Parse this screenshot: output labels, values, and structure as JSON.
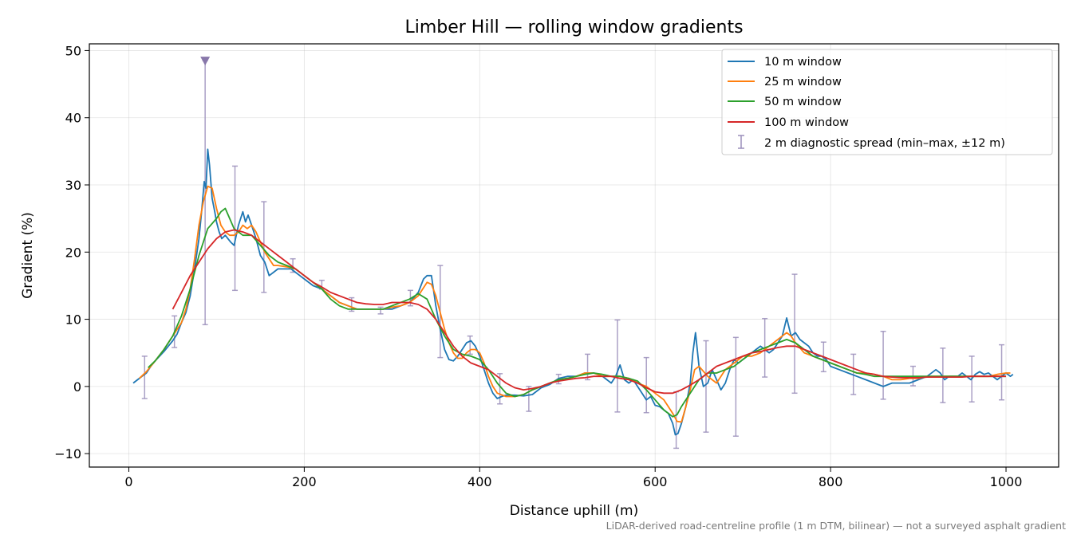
{
  "chart_data": {
    "type": "line",
    "title": "Limber Hill — rolling window gradients",
    "xlabel": "Distance uphill (m)",
    "ylabel": "Gradient (%)",
    "xlim": [
      -45,
      1060
    ],
    "ylim": [
      -12,
      51
    ],
    "xticks": [
      0,
      200,
      400,
      600,
      800,
      1000
    ],
    "xtick_labels": [
      "0",
      "200",
      "400",
      "600",
      "800",
      "1000"
    ],
    "yticks": [
      -10,
      0,
      10,
      20,
      30,
      40,
      50
    ],
    "ytick_labels": [
      "−10",
      "0",
      "10",
      "20",
      "30",
      "40",
      "50"
    ],
    "grid": true,
    "legend_position": "top-right",
    "footnote": "LiDAR-derived road-centreline profile (1 m DTM, bilinear) — not a surveyed asphalt gradient",
    "colors": {
      "10m": "#1f77b4",
      "25m": "#ff7f0e",
      "50m": "#2ca02c",
      "100m": "#d62728",
      "errorbar": "#9b8fbb"
    },
    "series": [
      {
        "name": "10 m window",
        "color": "#1f77b4",
        "x": [
          5,
          10,
          15,
          20,
          25,
          30,
          35,
          40,
          45,
          50,
          55,
          60,
          65,
          70,
          75,
          80,
          83,
          86,
          88,
          90,
          92,
          95,
          98,
          100,
          103,
          106,
          110,
          113,
          116,
          120,
          125,
          130,
          133,
          136,
          140,
          145,
          150,
          155,
          160,
          165,
          170,
          175,
          180,
          185,
          190,
          195,
          200,
          210,
          220,
          230,
          240,
          250,
          260,
          270,
          280,
          290,
          300,
          310,
          320,
          330,
          336,
          340,
          345,
          350,
          355,
          360,
          365,
          370,
          375,
          380,
          385,
          390,
          395,
          400,
          405,
          410,
          415,
          420,
          425,
          430,
          440,
          450,
          460,
          470,
          480,
          490,
          500,
          510,
          520,
          530,
          540,
          545,
          550,
          555,
          560,
          565,
          570,
          575,
          580,
          585,
          590,
          595,
          600,
          605,
          610,
          615,
          620,
          623,
          626,
          630,
          635,
          640,
          643,
          646,
          650,
          655,
          660,
          665,
          670,
          675,
          680,
          685,
          690,
          695,
          700,
          705,
          710,
          715,
          720,
          725,
          730,
          735,
          740,
          745,
          750,
          755,
          760,
          765,
          770,
          775,
          780,
          785,
          790,
          795,
          800,
          810,
          820,
          830,
          840,
          850,
          860,
          870,
          880,
          890,
          900,
          910,
          920,
          925,
          930,
          935,
          940,
          945,
          950,
          955,
          960,
          965,
          970,
          975,
          980,
          985,
          990,
          995,
          1000,
          1005,
          1008
        ],
        "y": [
          0.5,
          1.0,
          1.5,
          2.0,
          3.0,
          3.8,
          4.5,
          5.2,
          6.0,
          6.8,
          7.8,
          9.5,
          11.0,
          13.5,
          17.5,
          22.0,
          26.0,
          30.5,
          29.5,
          35.3,
          33.0,
          28.0,
          26.0,
          24.5,
          23.0,
          22.0,
          22.5,
          22.0,
          21.5,
          21.0,
          24.0,
          26.0,
          24.5,
          25.5,
          24.0,
          22.0,
          19.5,
          18.5,
          16.5,
          17.0,
          17.5,
          17.5,
          17.5,
          17.5,
          17.0,
          16.5,
          16.0,
          15.0,
          14.5,
          13.5,
          12.5,
          12.0,
          11.5,
          11.5,
          11.5,
          11.5,
          11.5,
          12.0,
          12.5,
          14.0,
          16.0,
          16.5,
          16.5,
          12.0,
          8.5,
          5.5,
          4.0,
          3.8,
          4.5,
          5.5,
          6.5,
          6.8,
          6.0,
          4.5,
          2.5,
          0.5,
          -1.0,
          -1.8,
          -1.5,
          -1.3,
          -1.3,
          -1.4,
          -1.2,
          -0.2,
          0.3,
          1.2,
          1.5,
          1.5,
          2.0,
          2.0,
          1.5,
          1.0,
          0.5,
          1.5,
          3.2,
          1.0,
          0.5,
          1.0,
          0.0,
          -1.0,
          -2.0,
          -1.5,
          -2.8,
          -3.0,
          -3.5,
          -4.0,
          -5.5,
          -7.2,
          -7.0,
          -5.5,
          -3.0,
          0.5,
          5.0,
          8.0,
          3.0,
          0.0,
          0.5,
          2.5,
          1.0,
          -0.5,
          0.5,
          2.5,
          4.0,
          3.5,
          4.0,
          4.5,
          5.0,
          5.5,
          6.0,
          5.5,
          5.0,
          5.5,
          6.5,
          7.5,
          10.2,
          7.5,
          8.0,
          7.0,
          6.5,
          6.0,
          5.0,
          4.5,
          4.5,
          4.0,
          3.0,
          2.5,
          2.0,
          1.5,
          1.0,
          0.5,
          0.0,
          0.5,
          0.5,
          0.5,
          1.0,
          1.5,
          2.5,
          2.0,
          1.0,
          1.5,
          1.5,
          1.5,
          2.0,
          1.5,
          1.0,
          1.8,
          2.2,
          1.8,
          2.0,
          1.5,
          1.0,
          1.5,
          2.0,
          1.5,
          1.8
        ]
      },
      {
        "name": "25 m window",
        "color": "#ff7f0e",
        "x": [
          12,
          20,
          30,
          40,
          50,
          60,
          65,
          70,
          75,
          80,
          85,
          90,
          95,
          100,
          105,
          110,
          115,
          120,
          125,
          130,
          135,
          140,
          145,
          150,
          155,
          160,
          165,
          170,
          180,
          190,
          200,
          210,
          220,
          230,
          240,
          250,
          260,
          270,
          280,
          290,
          300,
          310,
          320,
          330,
          340,
          345,
          350,
          355,
          360,
          365,
          370,
          375,
          380,
          385,
          390,
          395,
          400,
          405,
          410,
          415,
          420,
          430,
          440,
          450,
          460,
          470,
          480,
          490,
          500,
          510,
          520,
          530,
          540,
          550,
          560,
          570,
          580,
          590,
          600,
          610,
          615,
          620,
          625,
          630,
          635,
          640,
          645,
          650,
          660,
          670,
          680,
          690,
          700,
          710,
          720,
          730,
          740,
          745,
          750,
          755,
          760,
          770,
          780,
          790,
          800,
          810,
          820,
          830,
          840,
          850,
          860,
          870,
          880,
          890,
          900,
          910,
          920,
          930,
          940,
          950,
          960,
          970,
          980,
          990,
          1000,
          1005
        ],
        "y": [
          1.2,
          2.2,
          3.8,
          5.5,
          7.5,
          9.5,
          11.5,
          14.5,
          19.0,
          24.0,
          27.5,
          29.8,
          29.5,
          26.5,
          24.0,
          23.0,
          22.5,
          22.5,
          23.0,
          24.0,
          23.5,
          24.0,
          23.0,
          21.5,
          20.0,
          19.0,
          18.0,
          18.0,
          17.8,
          17.5,
          16.5,
          15.5,
          14.5,
          13.5,
          12.5,
          12.0,
          11.5,
          11.5,
          11.5,
          11.5,
          11.8,
          12.0,
          12.5,
          13.5,
          15.5,
          15.2,
          13.5,
          11.0,
          8.5,
          6.5,
          5.0,
          4.2,
          4.2,
          5.0,
          5.5,
          5.5,
          5.0,
          3.5,
          1.5,
          0.0,
          -1.0,
          -1.5,
          -1.5,
          -1.2,
          -0.5,
          0.0,
          0.5,
          1.0,
          1.2,
          1.5,
          2.0,
          2.0,
          1.5,
          1.5,
          1.5,
          1.2,
          0.5,
          0.0,
          -1.0,
          -2.0,
          -3.0,
          -4.0,
          -5.2,
          -5.3,
          -3.0,
          -0.5,
          2.5,
          3.0,
          1.5,
          0.5,
          2.5,
          3.5,
          4.5,
          4.5,
          5.0,
          6.0,
          7.0,
          7.5,
          8.0,
          7.5,
          6.5,
          5.0,
          4.5,
          4.0,
          3.5,
          3.0,
          2.5,
          2.0,
          2.0,
          1.8,
          1.5,
          1.0,
          1.0,
          1.2,
          1.2,
          1.5,
          1.5,
          1.5,
          1.5,
          1.5,
          1.5,
          1.5,
          1.5,
          1.8,
          2.0,
          2.0
        ]
      },
      {
        "name": "50 m window",
        "color": "#2ca02c",
        "x": [
          22,
          30,
          40,
          50,
          60,
          70,
          80,
          90,
          100,
          105,
          110,
          115,
          120,
          130,
          140,
          150,
          160,
          170,
          180,
          190,
          200,
          210,
          220,
          230,
          240,
          250,
          260,
          270,
          280,
          290,
          300,
          310,
          320,
          330,
          340,
          350,
          360,
          370,
          380,
          390,
          400,
          410,
          420,
          430,
          440,
          450,
          460,
          470,
          480,
          490,
          500,
          510,
          520,
          530,
          540,
          550,
          560,
          570,
          580,
          590,
          600,
          610,
          620,
          625,
          630,
          640,
          650,
          660,
          670,
          680,
          690,
          700,
          710,
          720,
          730,
          740,
          750,
          760,
          770,
          780,
          790,
          800,
          810,
          820,
          830,
          840,
          850,
          860,
          870,
          880,
          890,
          900,
          910,
          920,
          930,
          940,
          950,
          960,
          970,
          980,
          990,
          1000
        ],
        "y": [
          2.8,
          3.8,
          5.5,
          7.5,
          10.5,
          14.5,
          19.5,
          23.5,
          25.0,
          26.0,
          26.5,
          25.0,
          23.5,
          22.5,
          22.5,
          21.0,
          19.5,
          18.5,
          18.0,
          17.5,
          16.5,
          15.5,
          14.5,
          13.0,
          12.0,
          11.5,
          11.5,
          11.5,
          11.5,
          11.5,
          12.0,
          12.5,
          13.0,
          13.8,
          13.0,
          10.0,
          7.5,
          5.5,
          4.8,
          4.5,
          4.0,
          2.5,
          0.5,
          -1.0,
          -1.5,
          -1.2,
          -0.5,
          0.0,
          0.5,
          1.0,
          1.2,
          1.5,
          1.8,
          2.0,
          1.8,
          1.5,
          1.5,
          1.2,
          0.8,
          -0.5,
          -2.0,
          -3.5,
          -4.5,
          -4.2,
          -3.0,
          -1.0,
          1.0,
          2.0,
          2.0,
          2.5,
          3.0,
          4.0,
          5.0,
          5.5,
          6.0,
          6.5,
          7.0,
          6.5,
          5.5,
          4.5,
          4.0,
          3.5,
          3.0,
          2.5,
          2.0,
          1.8,
          1.5,
          1.5,
          1.5,
          1.5,
          1.5,
          1.5,
          1.5,
          1.5,
          1.5,
          1.5,
          1.5,
          1.5,
          1.5,
          1.5,
          1.5,
          1.5
        ]
      },
      {
        "name": "100 m window",
        "color": "#d62728",
        "x": [
          50,
          60,
          70,
          80,
          90,
          100,
          110,
          120,
          130,
          140,
          150,
          160,
          170,
          180,
          190,
          200,
          210,
          220,
          230,
          240,
          250,
          260,
          270,
          280,
          290,
          300,
          310,
          320,
          330,
          340,
          350,
          360,
          370,
          380,
          390,
          400,
          410,
          420,
          430,
          440,
          450,
          460,
          470,
          480,
          490,
          500,
          510,
          520,
          530,
          540,
          550,
          560,
          570,
          580,
          590,
          600,
          610,
          620,
          630,
          640,
          650,
          660,
          670,
          680,
          690,
          700,
          710,
          720,
          730,
          740,
          750,
          760,
          770,
          780,
          790,
          800,
          810,
          820,
          830,
          840,
          850,
          860,
          870,
          880,
          890,
          900,
          910,
          920,
          930,
          940,
          950,
          960,
          970,
          980,
          990,
          1000
        ],
        "y": [
          11.5,
          14.0,
          16.5,
          18.5,
          20.5,
          22.0,
          23.0,
          23.3,
          23.0,
          22.5,
          21.5,
          20.5,
          19.5,
          18.5,
          17.5,
          16.5,
          15.5,
          14.8,
          14.0,
          13.5,
          13.0,
          12.5,
          12.3,
          12.2,
          12.2,
          12.5,
          12.5,
          12.5,
          12.2,
          11.5,
          10.0,
          8.0,
          6.0,
          4.5,
          3.5,
          3.0,
          2.5,
          1.5,
          0.5,
          -0.2,
          -0.5,
          -0.3,
          0.0,
          0.5,
          0.8,
          1.0,
          1.2,
          1.3,
          1.5,
          1.5,
          1.5,
          1.2,
          1.0,
          0.5,
          -0.2,
          -0.8,
          -1.0,
          -1.0,
          -0.5,
          0.2,
          1.0,
          2.0,
          3.0,
          3.5,
          4.0,
          4.5,
          5.0,
          5.2,
          5.5,
          5.8,
          6.0,
          6.0,
          5.5,
          5.0,
          4.5,
          4.0,
          3.5,
          3.0,
          2.5,
          2.0,
          1.8,
          1.5,
          1.4,
          1.3,
          1.3,
          1.3,
          1.4,
          1.4,
          1.4,
          1.4,
          1.4,
          1.5,
          1.5,
          1.5,
          1.5,
          1.5
        ]
      }
    ],
    "errorbars": {
      "name": "2 m diagnostic spread (min–max, ±12 m)",
      "color": "#9b8fbb",
      "points": [
        {
          "x": 18,
          "low": -1.8,
          "high": 4.5
        },
        {
          "x": 52,
          "low": 5.8,
          "high": 10.5
        },
        {
          "x": 87,
          "low": 9.2,
          "high": 48.5
        },
        {
          "x": 121,
          "low": 14.3,
          "high": 32.8
        },
        {
          "x": 154,
          "low": 14.0,
          "high": 27.5
        },
        {
          "x": 187,
          "low": 17.0,
          "high": 19.0
        },
        {
          "x": 220,
          "low": 14.5,
          "high": 15.8
        },
        {
          "x": 254,
          "low": 11.2,
          "high": 13.2
        },
        {
          "x": 287,
          "low": 10.8,
          "high": 11.8
        },
        {
          "x": 321,
          "low": 12.0,
          "high": 14.3
        },
        {
          "x": 355,
          "low": 4.3,
          "high": 18.0
        },
        {
          "x": 389,
          "low": 4.8,
          "high": 7.5
        },
        {
          "x": 423,
          "low": -2.6,
          "high": 1.9
        },
        {
          "x": 456,
          "low": -3.7,
          "high": 0.0
        },
        {
          "x": 490,
          "low": 0.4,
          "high": 1.8
        },
        {
          "x": 523,
          "low": 1.0,
          "high": 4.8
        },
        {
          "x": 557,
          "low": -3.8,
          "high": 9.9
        },
        {
          "x": 590,
          "low": -3.9,
          "high": 4.3
        },
        {
          "x": 624,
          "low": -9.2,
          "high": -0.8
        },
        {
          "x": 658,
          "low": -6.8,
          "high": 6.8
        },
        {
          "x": 692,
          "low": -7.4,
          "high": 7.3
        },
        {
          "x": 725,
          "low": 1.4,
          "high": 10.1
        },
        {
          "x": 759,
          "low": -1.0,
          "high": 16.7
        },
        {
          "x": 792,
          "low": 2.2,
          "high": 6.6
        },
        {
          "x": 826,
          "low": -1.2,
          "high": 4.8
        },
        {
          "x": 860,
          "low": -1.9,
          "high": 8.2
        },
        {
          "x": 894,
          "low": 0.1,
          "high": 3.0
        },
        {
          "x": 928,
          "low": -2.4,
          "high": 5.7
        },
        {
          "x": 961,
          "low": -2.3,
          "high": 4.5
        },
        {
          "x": 995,
          "low": -2.0,
          "high": 6.2
        }
      ],
      "clipped_marker": {
        "x": 87,
        "y": 48.5
      }
    }
  }
}
